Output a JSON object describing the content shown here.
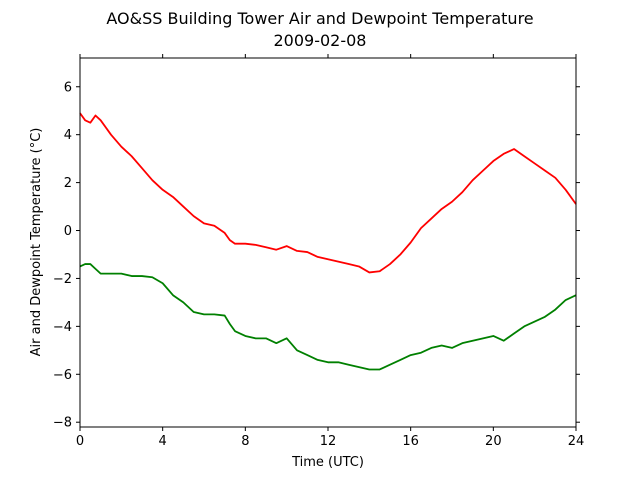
{
  "chart_data": {
    "type": "line",
    "title": "AO&SS Building Tower Air and Dewpoint Temperature",
    "subtitle": "2009-02-08",
    "xlabel": "Time (UTC)",
    "ylabel": "Air and Dewpoint Temperature (°C)",
    "xlim": [
      0,
      24
    ],
    "ylim": [
      -8.2,
      7.2
    ],
    "x_ticks": [
      0,
      4,
      8,
      12,
      16,
      20,
      24
    ],
    "y_ticks": [
      -8,
      -6,
      -4,
      -2,
      0,
      2,
      4,
      6
    ],
    "grid": false,
    "x": [
      0.0,
      0.25,
      0.5,
      0.75,
      1.0,
      1.5,
      2.0,
      2.5,
      3.0,
      3.5,
      4.0,
      4.5,
      5.0,
      5.5,
      6.0,
      6.5,
      7.0,
      7.25,
      7.5,
      8.0,
      8.5,
      9.0,
      9.5,
      10.0,
      10.5,
      11.0,
      11.5,
      12.0,
      12.5,
      13.0,
      13.5,
      14.0,
      14.5,
      15.0,
      15.5,
      16.0,
      16.5,
      17.0,
      17.5,
      18.0,
      18.5,
      19.0,
      19.5,
      20.0,
      20.5,
      21.0,
      21.5,
      22.0,
      22.5,
      23.0,
      23.5,
      24.0
    ],
    "series": [
      {
        "color": "#ff0000",
        "values": [
          4.9,
          4.6,
          4.5,
          4.8,
          4.6,
          4.0,
          3.5,
          3.1,
          2.6,
          2.1,
          1.7,
          1.4,
          1.0,
          0.6,
          0.3,
          0.2,
          -0.1,
          -0.4,
          -0.55,
          -0.55,
          -0.6,
          -0.7,
          -0.8,
          -0.65,
          -0.85,
          -0.9,
          -1.1,
          -1.2,
          -1.3,
          -1.4,
          -1.5,
          -1.75,
          -1.7,
          -1.4,
          -1.0,
          -0.5,
          0.1,
          0.5,
          0.9,
          1.2,
          1.6,
          2.1,
          2.5,
          2.9,
          3.2,
          3.4,
          3.1,
          2.8,
          2.5,
          2.2,
          1.7,
          1.1
        ]
      },
      {
        "color": "#008000",
        "values": [
          -1.5,
          -1.4,
          -1.4,
          -1.6,
          -1.8,
          -1.8,
          -1.8,
          -1.9,
          -1.9,
          -1.95,
          -2.2,
          -2.7,
          -3.0,
          -3.4,
          -3.5,
          -3.5,
          -3.55,
          -3.9,
          -4.2,
          -4.4,
          -4.5,
          -4.5,
          -4.7,
          -4.5,
          -5.0,
          -5.2,
          -5.4,
          -5.5,
          -5.5,
          -5.6,
          -5.7,
          -5.8,
          -5.8,
          -5.6,
          -5.4,
          -5.2,
          -5.1,
          -4.9,
          -4.8,
          -4.9,
          -4.7,
          -4.6,
          -4.5,
          -4.4,
          -4.6,
          -4.3,
          -4.0,
          -3.8,
          -3.6,
          -3.3,
          -2.9,
          -2.7
        ]
      }
    ]
  }
}
